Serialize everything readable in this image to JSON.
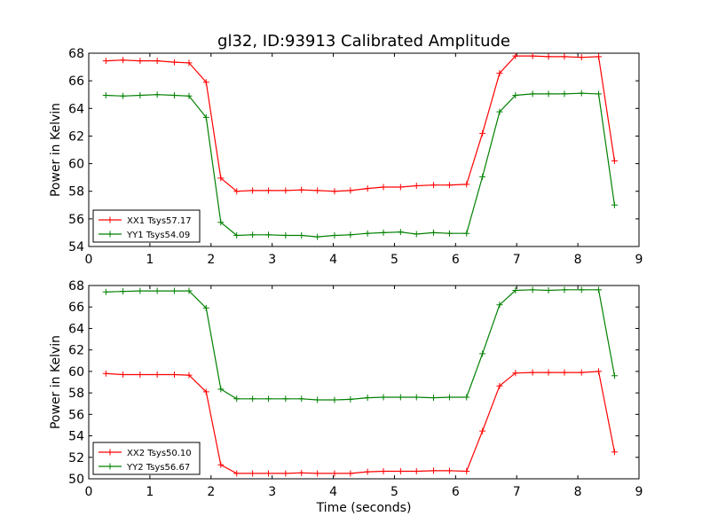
{
  "title": "gl32, ID:93913 Calibrated Amplitude",
  "chart_data": [
    {
      "type": "line",
      "ylabel": "Power in Kelvin",
      "xlabel": "",
      "xlim": [
        0,
        9
      ],
      "ylim": [
        54,
        68
      ],
      "xticks": [
        0,
        1,
        2,
        3,
        4,
        5,
        6,
        7,
        8,
        9
      ],
      "yticks": [
        54,
        56,
        58,
        60,
        62,
        64,
        66,
        68
      ],
      "grid": false,
      "legend_position": "lower-left",
      "x": [
        0.28,
        0.56,
        0.84,
        1.12,
        1.4,
        1.64,
        1.92,
        2.16,
        2.42,
        2.68,
        2.94,
        3.22,
        3.48,
        3.74,
        4.02,
        4.28,
        4.56,
        4.82,
        5.1,
        5.36,
        5.64,
        5.9,
        6.18,
        6.44,
        6.72,
        6.98,
        7.26,
        7.52,
        7.78,
        8.06,
        8.34,
        8.6
      ],
      "series": [
        {
          "name": "XX1 Tsys57.17",
          "color": "#ff0000",
          "values": [
            67.45,
            67.5,
            67.45,
            67.45,
            67.35,
            67.3,
            65.9,
            58.95,
            58.0,
            58.05,
            58.05,
            58.05,
            58.1,
            58.05,
            58.0,
            58.05,
            58.2,
            58.3,
            58.3,
            58.4,
            58.45,
            58.45,
            58.5,
            62.2,
            66.55,
            67.8,
            67.8,
            67.75,
            67.75,
            67.7,
            67.75,
            60.2
          ]
        },
        {
          "name": "YY1 Tsys54.09",
          "color": "#008000",
          "values": [
            64.95,
            64.9,
            64.95,
            65.0,
            64.95,
            64.9,
            63.35,
            55.75,
            54.8,
            54.85,
            54.85,
            54.8,
            54.8,
            54.7,
            54.8,
            54.85,
            54.95,
            55.0,
            55.05,
            54.9,
            55.0,
            54.95,
            54.95,
            59.05,
            63.75,
            64.95,
            65.05,
            65.05,
            65.05,
            65.1,
            65.05,
            57.0
          ]
        }
      ]
    },
    {
      "type": "line",
      "ylabel": "Power in Kelvin",
      "xlabel": "Time (seconds)",
      "xlim": [
        0,
        9
      ],
      "ylim": [
        50,
        68
      ],
      "xticks": [
        0,
        1,
        2,
        3,
        4,
        5,
        6,
        7,
        8,
        9
      ],
      "yticks": [
        50,
        52,
        54,
        56,
        58,
        60,
        62,
        64,
        66,
        68
      ],
      "grid": false,
      "legend_position": "lower-left",
      "x": [
        0.28,
        0.56,
        0.84,
        1.12,
        1.4,
        1.64,
        1.92,
        2.16,
        2.42,
        2.68,
        2.94,
        3.22,
        3.48,
        3.74,
        4.02,
        4.28,
        4.56,
        4.82,
        5.1,
        5.36,
        5.64,
        5.9,
        6.18,
        6.44,
        6.72,
        6.98,
        7.26,
        7.52,
        7.78,
        8.06,
        8.34,
        8.6
      ],
      "series": [
        {
          "name": "XX2 Tsys50.10",
          "color": "#ff0000",
          "values": [
            59.8,
            59.7,
            59.7,
            59.7,
            59.7,
            59.65,
            58.1,
            51.3,
            50.5,
            50.5,
            50.5,
            50.5,
            50.55,
            50.5,
            50.5,
            50.5,
            50.65,
            50.7,
            50.7,
            50.7,
            50.75,
            50.75,
            50.7,
            54.45,
            58.65,
            59.85,
            59.9,
            59.9,
            59.9,
            59.9,
            60.0,
            52.5
          ]
        },
        {
          "name": "YY2 Tsys56.67",
          "color": "#008000",
          "values": [
            67.4,
            67.45,
            67.5,
            67.5,
            67.5,
            67.5,
            65.9,
            58.35,
            57.45,
            57.45,
            57.45,
            57.45,
            57.45,
            57.35,
            57.35,
            57.4,
            57.55,
            57.6,
            57.6,
            57.6,
            57.55,
            57.6,
            57.6,
            61.65,
            66.2,
            67.55,
            67.6,
            67.55,
            67.6,
            67.6,
            67.6,
            59.6
          ]
        }
      ]
    }
  ]
}
